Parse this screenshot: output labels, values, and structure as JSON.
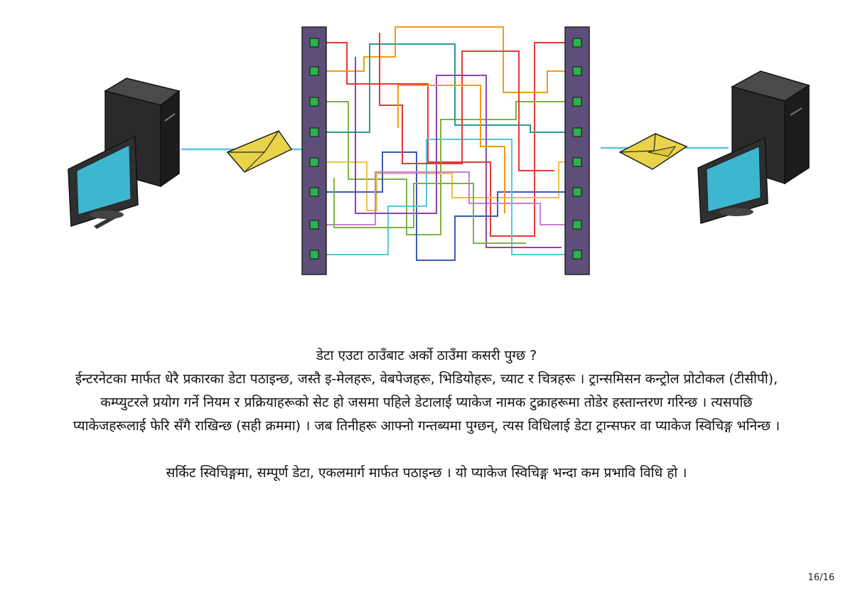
{
  "page": {
    "heading": "डेटा एउटा ठाउँबाट अर्को ठाउँमा कसरी पुग्छ ?",
    "paragraph_1": "ईन्टरनेटका मार्फत धेरै प्रकारका डेटा पठाइन्छ, जस्तै इ-मेलहरू, वेबपेजहरू, भिडियोहरू, च्याट र चित्रहरू । ट्रान्समिसन कन्ट्रोल प्रोटोकल (टीसीपी), कम्प्युटरले प्रयोग गर्ने नियम र प्रक्रियाहरूको सेट हो जसमा पहिले डेटालाई प्याकेज नामक टुक्राहरूमा तोडेर हस्तान्तरण गरिन्छ । त्यसपछि प्याकेजहरूलाई फेरि सँगै राखिन्छ (सही क्रममा) । जब तिनीहरू आफ्नो गन्तब्यमा पुग्छन्, त्यस विधिलाई डेटा ट्रान्सफर वा प्याकेज स्विचिङ्ग भनिन्छ ।",
    "paragraph_2": "सर्किट स्विचिङ्गमा, सम्पूर्ण डेटा, एकलमार्ग मार्फत पठाइन्छ । यो प्याकेज स्विचिङ्ग भन्दा कम प्रभावि विधि हो ।",
    "page_number": "16/16"
  },
  "illustration": {
    "colors": {
      "panel": "#5e4e7a",
      "port": "#2bb24c",
      "envelope": "#e8d34a",
      "link": "#5bc6d8",
      "screen": "#3fb6cf",
      "computer_body": "#2a2a2a"
    },
    "wire_colors": [
      "#e53935",
      "#f39c12",
      "#7cb342",
      "#2b9b8f",
      "#e8c547",
      "#3b5bb5",
      "#c97fd0",
      "#5bc6d8",
      "#8e44ad"
    ],
    "icons": [
      "computer-icon",
      "envelope-icon",
      "router-panel-icon",
      "network-wires-icon"
    ]
  }
}
